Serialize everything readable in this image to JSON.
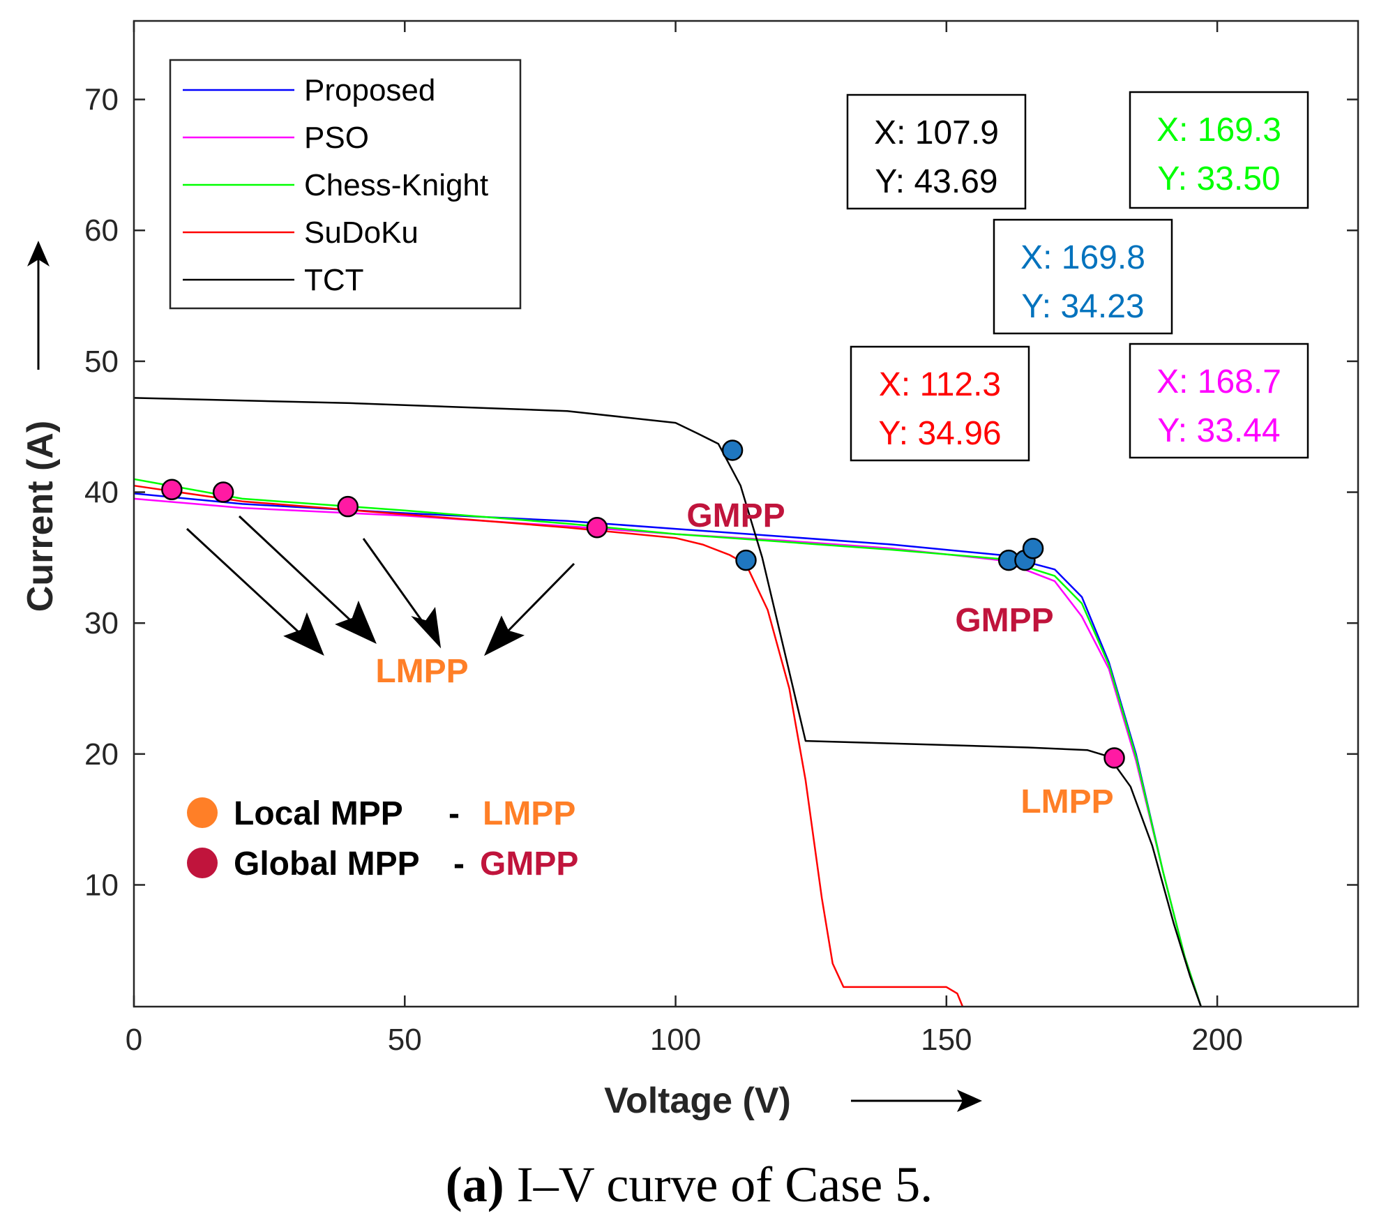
{
  "chart_data": {
    "type": "line",
    "xlabel": "Voltage (V)",
    "ylabel": "Current (A)",
    "xlim": [
      0,
      226
    ],
    "ylim": [
      0.7,
      76
    ],
    "xticks": [
      0,
      50,
      100,
      150,
      200
    ],
    "yticks": [
      10,
      20,
      30,
      40,
      50,
      60,
      70
    ],
    "grid": false,
    "legend_position": "top-left",
    "series": [
      {
        "name": "Proposed",
        "color": "#0000ff",
        "x": [
          0,
          20,
          50,
          80,
          100,
          120,
          140,
          160,
          170,
          175,
          180,
          185,
          190,
          194,
          197
        ],
        "y": [
          39.9,
          39.1,
          38.4,
          37.8,
          37.2,
          36.6,
          36.0,
          35.2,
          34.1,
          32.0,
          27.0,
          20.0,
          11.0,
          4.5,
          0.7
        ]
      },
      {
        "name": "PSO",
        "color": "#ff00ff",
        "x": [
          0,
          20,
          50,
          80,
          100,
          120,
          140,
          160,
          170,
          175,
          180,
          185,
          190,
          194,
          197
        ],
        "y": [
          39.5,
          38.8,
          38.2,
          37.4,
          36.8,
          36.3,
          35.7,
          34.8,
          33.2,
          30.5,
          26.5,
          19.5,
          11.0,
          4.5,
          0.7
        ]
      },
      {
        "name": "Chess-Knight",
        "color": "#00ff00",
        "x": [
          0,
          20,
          50,
          80,
          100,
          120,
          140,
          160,
          170,
          175,
          180,
          185,
          190,
          194,
          197
        ],
        "y": [
          41.0,
          39.5,
          38.6,
          37.6,
          36.8,
          36.2,
          35.6,
          34.9,
          33.6,
          31.5,
          26.8,
          19.8,
          11.0,
          4.5,
          0.7
        ]
      },
      {
        "name": "SuDoKu",
        "color": "#ff0000",
        "x": [
          0,
          20,
          50,
          80,
          100,
          105,
          110,
          113,
          117,
          121,
          124,
          127,
          129,
          131,
          150,
          152,
          153
        ],
        "y": [
          40.5,
          39.3,
          38.3,
          37.3,
          36.5,
          36.0,
          35.2,
          34.5,
          31.0,
          25.0,
          18.0,
          9.0,
          4.0,
          2.2,
          2.2,
          1.7,
          0.7
        ]
      },
      {
        "name": "TCT",
        "color": "#000000",
        "x": [
          0,
          40,
          80,
          100,
          104,
          107.9,
          112,
          116,
          120,
          124,
          140,
          165,
          176,
          180,
          184,
          188,
          192,
          195,
          197
        ],
        "y": [
          47.2,
          46.8,
          46.2,
          45.3,
          44.5,
          43.69,
          40.5,
          35.0,
          28.0,
          21.0,
          20.8,
          20.5,
          20.3,
          19.8,
          17.5,
          13.0,
          7.0,
          3.0,
          0.7
        ]
      }
    ],
    "points": {
      "pink": [
        {
          "x": 7,
          "y": 40.2
        },
        {
          "x": 16.5,
          "y": 40.0
        },
        {
          "x": 39.5,
          "y": 38.9
        },
        {
          "x": 85.5,
          "y": 37.3
        },
        {
          "x": 181,
          "y": 19.7
        }
      ],
      "blue": [
        {
          "x": 110.5,
          "y": 43.2
        },
        {
          "x": 113,
          "y": 34.8
        },
        {
          "x": 161.5,
          "y": 34.8
        },
        {
          "x": 164.5,
          "y": 34.8
        },
        {
          "x": 166,
          "y": 35.7
        }
      ]
    },
    "datatips": [
      {
        "x_text": "X: 107.9",
        "y_text": "Y: 43.69",
        "color": "#000000"
      },
      {
        "x_text": "X: 169.3",
        "y_text": "Y: 33.50",
        "color": "#00ff00"
      },
      {
        "x_text": "X: 169.8",
        "y_text": "Y: 34.23",
        "color": "#0072bd"
      },
      {
        "x_text": "X: 112.3",
        "y_text": "Y: 34.96",
        "color": "#ff0000"
      },
      {
        "x_text": "X: 168.7",
        "y_text": "Y: 33.44",
        "color": "#ff00ff"
      }
    ],
    "annotations": {
      "gmpp_1": "GMPP",
      "gmpp_2": "GMPP",
      "lmpp_1": "LMPP",
      "lmpp_2": "LMPP"
    },
    "key": {
      "local_label": "Local MPP",
      "local_sep": "-",
      "local_abbr": "LMPP",
      "global_label": "Global MPP",
      "global_sep": "-",
      "global_abbr": "GMPP"
    },
    "caption_bold": "(a)",
    "caption_rest": " I–V curve of Case 5.",
    "colors": {
      "lmpp": "#ff7f27",
      "gmpp": "#c0143c",
      "pink_marker": "#ff1aa3",
      "blue_marker": "#1f77c0"
    }
  }
}
